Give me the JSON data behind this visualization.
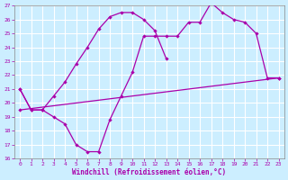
{
  "xlabel": "Windchill (Refroidissement éolien,°C)",
  "bg_color": "#cceeff",
  "grid_color": "#ffffff",
  "line_color": "#aa00aa",
  "xlim_min": -0.5,
  "xlim_max": 23.5,
  "ylim_min": 16,
  "ylim_max": 27,
  "yticks": [
    16,
    17,
    18,
    19,
    20,
    21,
    22,
    23,
    24,
    25,
    26,
    27
  ],
  "xticks": [
    0,
    1,
    2,
    3,
    4,
    5,
    6,
    7,
    8,
    9,
    10,
    11,
    12,
    13,
    14,
    15,
    16,
    17,
    18,
    19,
    20,
    21,
    22,
    23
  ],
  "curve1_x": [
    0,
    1,
    2,
    3,
    4,
    5,
    6,
    7,
    8,
    9,
    10,
    11,
    12,
    13,
    14,
    15,
    16,
    17,
    18,
    19,
    20,
    21,
    22,
    23
  ],
  "curve1_y": [
    21.0,
    19.5,
    19.5,
    19.0,
    18.5,
    17.0,
    16.5,
    16.5,
    18.8,
    20.5,
    22.2,
    24.8,
    24.8,
    24.8,
    24.8,
    25.8,
    25.8,
    27.2,
    26.5,
    26.0,
    25.8,
    25.0,
    21.8,
    21.8
  ],
  "curve2_x": [
    0,
    1,
    2,
    3,
    4,
    5,
    6,
    7,
    8,
    9,
    10,
    11,
    12,
    13
  ],
  "curve2_y": [
    21.0,
    19.5,
    19.5,
    20.5,
    21.5,
    22.8,
    24.0,
    25.3,
    26.2,
    26.5,
    26.5,
    26.0,
    25.2,
    23.2
  ],
  "line3_x": [
    0,
    23
  ],
  "line3_y": [
    19.5,
    21.8
  ],
  "xlabel_fontsize": 5.5,
  "tick_fontsize": 4.5,
  "linewidth": 0.9,
  "markersize": 2.2
}
